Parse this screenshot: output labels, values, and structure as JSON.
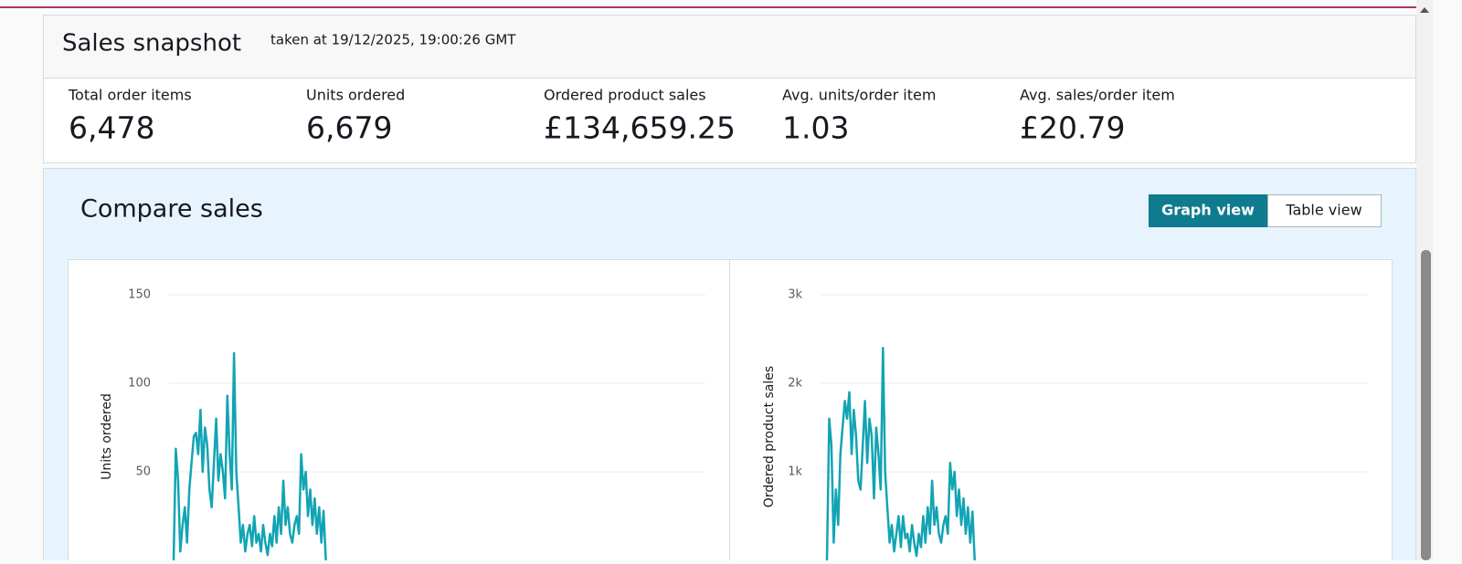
{
  "header": {
    "title": "Sales snapshot",
    "timestamp": "taken at 19/12/2025, 19:00:26 GMT"
  },
  "metrics": [
    {
      "label": "Total order items",
      "value": "6,478"
    },
    {
      "label": "Units ordered",
      "value": "6,679"
    },
    {
      "label": "Ordered product sales",
      "value": "£134,659.25"
    },
    {
      "label": "Avg. units/order item",
      "value": "1.03"
    },
    {
      "label": "Avg. sales/order item",
      "value": "£20.79"
    }
  ],
  "compare": {
    "title": "Compare sales",
    "views": [
      "Graph view",
      "Table view"
    ],
    "active_view": 0
  },
  "charts": [
    {
      "type": "line",
      "ylabel": "Units ordered",
      "ylim": [
        0,
        150
      ],
      "yticks": [
        50,
        100,
        150
      ],
      "grid": true,
      "color": "#12a4b4",
      "values": [
        0,
        63,
        45,
        5,
        20,
        30,
        10,
        40,
        55,
        70,
        72,
        60,
        85,
        50,
        75,
        65,
        40,
        30,
        55,
        80,
        45,
        60,
        50,
        35,
        93,
        60,
        40,
        117,
        50,
        30,
        10,
        20,
        5,
        15,
        20,
        8,
        25,
        10,
        15,
        5,
        20,
        10,
        3,
        15,
        8,
        25,
        10,
        30,
        15,
        45,
        20,
        30,
        15,
        10,
        20,
        25,
        15,
        60,
        40,
        50,
        25,
        40,
        20,
        35,
        15,
        30,
        10,
        28,
        0
      ]
    },
    {
      "type": "line",
      "ylabel": "Ordered product sales",
      "ylim": [
        0,
        3000
      ],
      "yticks": [
        {
          "value": 1000,
          "label": "1k"
        },
        {
          "value": 2000,
          "label": "2k"
        },
        {
          "value": 3000,
          "label": "3k"
        }
      ],
      "grid": true,
      "color": "#12a4b4",
      "values": [
        0,
        1600,
        1300,
        200,
        800,
        400,
        1200,
        1500,
        1800,
        1600,
        1900,
        1200,
        1700,
        1400,
        900,
        800,
        1300,
        1800,
        1100,
        1600,
        1400,
        700,
        1500,
        1200,
        800,
        2400,
        1000,
        600,
        200,
        400,
        100,
        300,
        500,
        150,
        500,
        250,
        300,
        100,
        400,
        200,
        50,
        300,
        150,
        500,
        200,
        600,
        300,
        900,
        400,
        600,
        300,
        200,
        400,
        500,
        300,
        1100,
        800,
        1000,
        500,
        800,
        400,
        700,
        300,
        600,
        200,
        550,
        0
      ]
    }
  ]
}
